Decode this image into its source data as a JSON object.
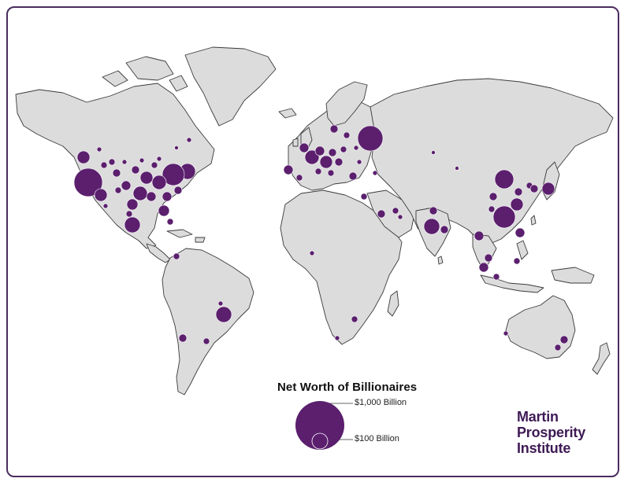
{
  "legend": {
    "title": "Net Worth of Billionaires",
    "large_label": "$1,000 Billion",
    "small_label": "$100 Billion"
  },
  "logo": {
    "line1": "Martin",
    "line2": "Prosperity",
    "line3": "Institute"
  },
  "colors": {
    "bubble": "#5b1f6e",
    "land": "#dcdcdc",
    "border": "#4a2c5e",
    "logo_text": "#3e1a55"
  }
}
